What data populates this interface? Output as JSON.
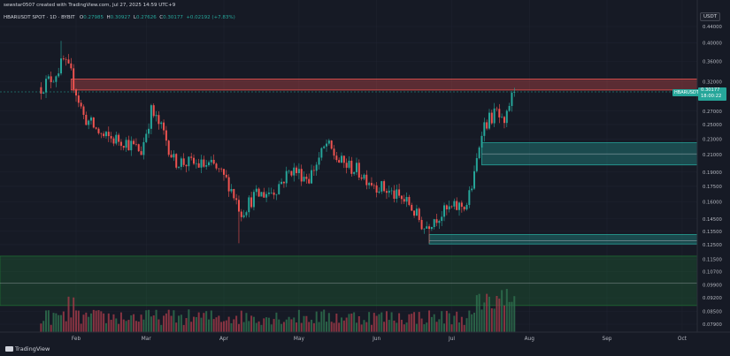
{
  "header": {
    "credit": "sewstar0507 created with TradingView.com, Jul 27, 2025 14:59 UTC+9",
    "symbol": "HBARUSDT SPOT · 1D · BYBIT",
    "open_label": "O",
    "open": "0.27985",
    "high_label": "H",
    "high": "0.30927",
    "low_label": "L",
    "low": "0.27626",
    "close_label": "C",
    "close": "0.30177",
    "change": "+0.02192 (+7.83%)"
  },
  "price_axis": {
    "currency": "USDT",
    "ticks": [
      "0.44000",
      "0.40000",
      "0.36000",
      "0.32000",
      "0.27000",
      "0.25000",
      "0.23000",
      "0.21000",
      "0.19000",
      "0.17500",
      "0.16000",
      "0.14500",
      "0.13500",
      "0.12500",
      "0.11500",
      "0.10700",
      "0.09900",
      "0.09200",
      "0.08500",
      "0.07900"
    ]
  },
  "last_price": {
    "symbol": "HBARUSDT",
    "value": "0.30177",
    "countdown": "18:00:22"
  },
  "logo": {
    "text": "TradingView"
  },
  "colors": {
    "background": "#161a25",
    "up": "#26a69a",
    "down": "#ef5350",
    "volume_up": "#2e6f4e",
    "volume_down": "#9c3a48",
    "resistance_zone": "#ef5350",
    "support_zone": "#26a69a",
    "accumulation_zone": "#1f6b33"
  },
  "chart_data": {
    "type": "candlestick",
    "interval": "1D",
    "time_axis": [
      "Feb",
      "Mar",
      "Apr",
      "May",
      "Jun",
      "Jul",
      "Aug",
      "Sep",
      "Oct"
    ],
    "price_range": [
      0.07,
      0.47
    ],
    "zones": [
      {
        "kind": "resistance",
        "from": 0.305,
        "to": 0.325
      },
      {
        "kind": "support",
        "from": 0.198,
        "to": 0.225,
        "midline": 0.211
      },
      {
        "kind": "support",
        "from": 0.1255,
        "to": 0.1325,
        "midline": 0.128
      },
      {
        "kind": "accumulation",
        "from": 0.088,
        "to": 0.117,
        "midline": 0.1
      }
    ],
    "close_path": [
      {
        "date": "2025-01-18",
        "close": 0.31
      },
      {
        "date": "2025-01-23",
        "close": 0.33
      },
      {
        "date": "2025-01-27",
        "close": 0.36
      },
      {
        "date": "2025-01-30",
        "close": 0.333
      },
      {
        "date": "2025-02-04",
        "close": 0.262
      },
      {
        "date": "2025-02-12",
        "close": 0.232
      },
      {
        "date": "2025-02-20",
        "close": 0.228
      },
      {
        "date": "2025-02-27",
        "close": 0.214
      },
      {
        "date": "2025-03-03",
        "close": 0.27
      },
      {
        "date": "2025-03-08",
        "close": 0.238
      },
      {
        "date": "2025-03-12",
        "close": 0.203
      },
      {
        "date": "2025-03-20",
        "close": 0.199
      },
      {
        "date": "2025-03-28",
        "close": 0.196
      },
      {
        "date": "2025-04-03",
        "close": 0.178
      },
      {
        "date": "2025-04-08",
        "close": 0.151
      },
      {
        "date": "2025-04-13",
        "close": 0.165
      },
      {
        "date": "2025-04-21",
        "close": 0.171
      },
      {
        "date": "2025-04-28",
        "close": 0.193
      },
      {
        "date": "2025-05-05",
        "close": 0.184
      },
      {
        "date": "2025-05-12",
        "close": 0.223
      },
      {
        "date": "2025-05-17",
        "close": 0.202
      },
      {
        "date": "2025-05-24",
        "close": 0.192
      },
      {
        "date": "2025-05-31",
        "close": 0.178
      },
      {
        "date": "2025-06-07",
        "close": 0.168
      },
      {
        "date": "2025-06-14",
        "close": 0.158
      },
      {
        "date": "2025-06-20",
        "close": 0.138
      },
      {
        "date": "2025-06-24",
        "close": 0.146
      },
      {
        "date": "2025-06-30",
        "close": 0.153
      },
      {
        "date": "2025-07-07",
        "close": 0.158
      },
      {
        "date": "2025-07-10",
        "close": 0.185
      },
      {
        "date": "2025-07-13",
        "close": 0.245
      },
      {
        "date": "2025-07-16",
        "close": 0.258
      },
      {
        "date": "2025-07-19",
        "close": 0.268
      },
      {
        "date": "2025-07-22",
        "close": 0.243
      },
      {
        "date": "2025-07-24",
        "close": 0.281
      },
      {
        "date": "2025-07-26",
        "close": 0.302
      }
    ],
    "extremes": [
      {
        "date": "2025-01-26",
        "high": 0.405
      },
      {
        "date": "2025-04-07",
        "low": 0.126
      },
      {
        "date": "2025-06-22",
        "low": 0.126
      },
      {
        "date": "2025-07-26",
        "high": 0.309
      }
    ]
  }
}
